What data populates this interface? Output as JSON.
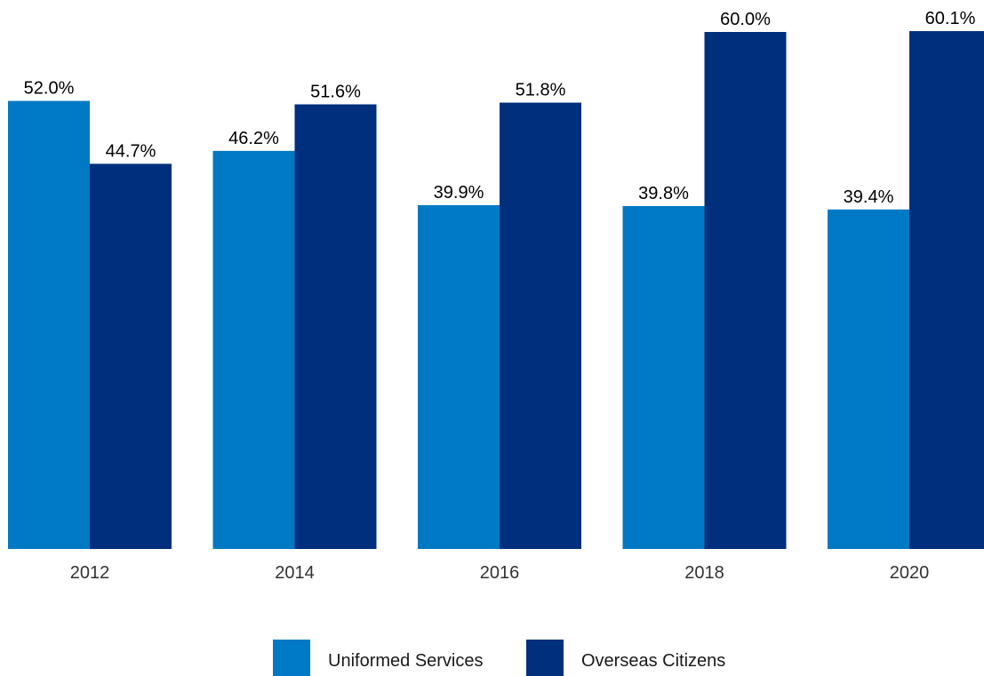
{
  "chart_data": {
    "type": "bar",
    "categories": [
      "2012",
      "2014",
      "2016",
      "2018",
      "2020"
    ],
    "series": [
      {
        "name": "Uniformed Services",
        "color": "#0079c5",
        "values": [
          52.0,
          46.2,
          39.9,
          39.8,
          39.4
        ],
        "labels": [
          "52.0%",
          "46.2%",
          "39.9%",
          "39.8%",
          "39.4%"
        ]
      },
      {
        "name": "Overseas Citizens",
        "color": "#002f7d",
        "values": [
          44.7,
          51.6,
          51.8,
          60.0,
          60.1
        ],
        "labels": [
          "44.7%",
          "51.6%",
          "51.8%",
          "60.0%",
          "60.1%"
        ]
      }
    ],
    "title": "",
    "xlabel": "",
    "ylabel": "",
    "ylim": [
      0,
      100
    ],
    "grid": false,
    "legend_position": "bottom-center"
  }
}
